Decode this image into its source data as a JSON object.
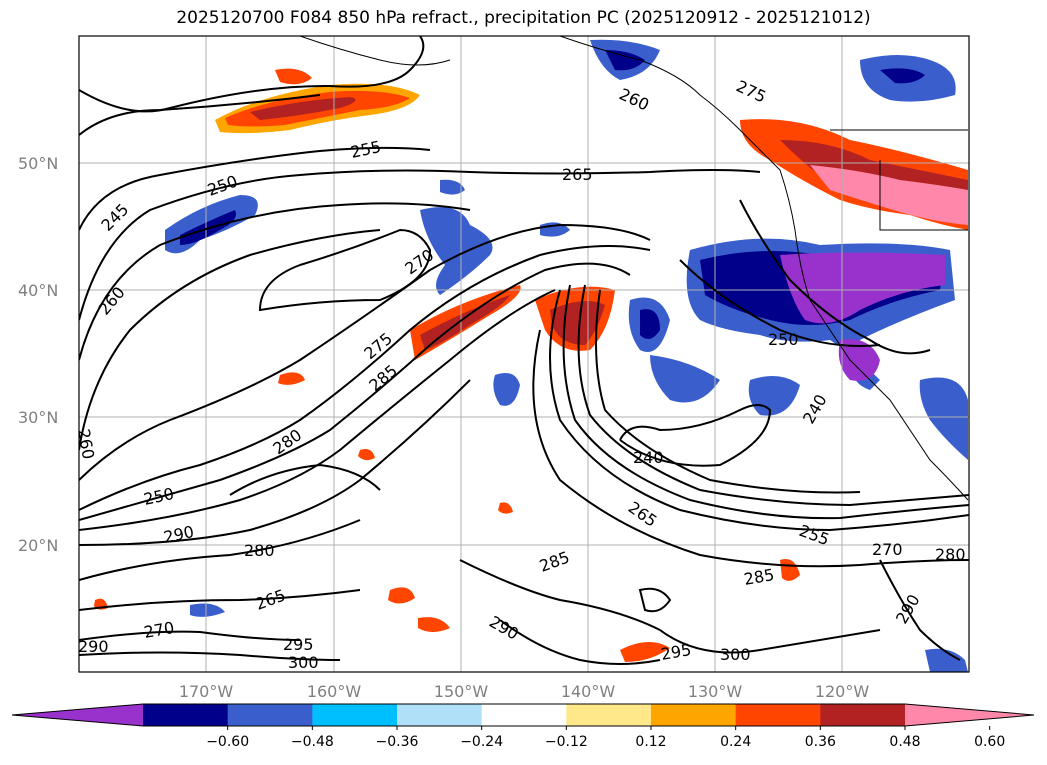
{
  "title": "2025120700 F084 850 hPa refract., precipitation PC (2025120912 - 2025121012)",
  "lat_labels": [
    "50°N",
    "40°N",
    "30°N",
    "20°N"
  ],
  "lon_labels": [
    "170°W",
    "160°W",
    "150°W",
    "140°W",
    "130°W",
    "120°W"
  ],
  "colorbar": {
    "ticks": [
      "−0.60",
      "−0.48",
      "−0.36",
      "−0.24",
      "−0.12",
      "0.12",
      "0.24",
      "0.36",
      "0.48",
      "0.60"
    ],
    "colors": [
      "#9932cc",
      "#00008b",
      "#3a5fcd",
      "#00bfff",
      "#b0e0f8",
      "#ffffff",
      "#ffe88a",
      "#ffa500",
      "#ff4500",
      "#b22222",
      "#ff88aa"
    ]
  },
  "contour_labels": [
    "255",
    "250",
    "245",
    "260",
    "265",
    "270",
    "275",
    "285",
    "280",
    "290",
    "295",
    "300",
    "240",
    "250",
    "255",
    "260",
    "265",
    "270",
    "275",
    "280",
    "285",
    "290",
    "295",
    "300",
    "265",
    "270",
    "285",
    "240",
    "250",
    "260",
    "290",
    "280",
    "290"
  ]
}
